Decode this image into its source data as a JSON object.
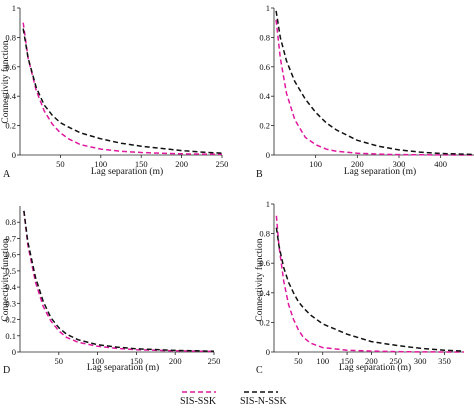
{
  "chart_data": [
    {
      "type": "line",
      "panel_label": "A",
      "xlabel": "Lag separation (m)",
      "ylabel": "Connectivity function",
      "xlim": [
        0,
        250
      ],
      "ylim": [
        0,
        1
      ],
      "x_ticks": [
        "50",
        "100",
        "150",
        "200",
        "250"
      ],
      "y_ticks": [
        "0",
        "0.2",
        "0.4",
        "0.6",
        "0.8",
        "1"
      ],
      "show_ylabel": true,
      "series": [
        {
          "name": "SIS-SSK",
          "color": "#e0189f",
          "x": [
            4,
            10,
            20,
            30,
            40,
            50,
            60,
            75,
            100,
            125,
            150,
            175,
            200,
            225,
            250
          ],
          "y": [
            0.9,
            0.66,
            0.44,
            0.3,
            0.21,
            0.15,
            0.11,
            0.07,
            0.04,
            0.025,
            0.017,
            0.012,
            0.008,
            0.006,
            0.005
          ]
        },
        {
          "name": "SIS-N-SSK",
          "color": "#111111",
          "x": [
            4,
            10,
            20,
            30,
            40,
            50,
            60,
            75,
            100,
            125,
            150,
            175,
            200,
            225,
            250
          ],
          "y": [
            0.86,
            0.66,
            0.46,
            0.34,
            0.27,
            0.22,
            0.19,
            0.15,
            0.11,
            0.08,
            0.06,
            0.045,
            0.03,
            0.02,
            0.012
          ]
        }
      ]
    },
    {
      "type": "line",
      "panel_label": "B",
      "xlabel": "Lag separation (m)",
      "ylabel": "Connectivity function",
      "xlim": [
        0,
        480
      ],
      "ylim": [
        0,
        1
      ],
      "x_ticks": [
        "100",
        "200",
        "300",
        "400"
      ],
      "y_ticks": [
        "0",
        "0.2",
        "0.4",
        "0.6",
        "0.8",
        "1"
      ],
      "show_ylabel": false,
      "series": [
        {
          "name": "SIS-SSK",
          "color": "#e0189f",
          "x": [
            5,
            15,
            30,
            50,
            75,
            100,
            125,
            150,
            200,
            250,
            300,
            400,
            480
          ],
          "y": [
            0.92,
            0.66,
            0.42,
            0.24,
            0.12,
            0.07,
            0.04,
            0.025,
            0.012,
            0.006,
            0.003,
            0.001,
            0.0
          ]
        },
        {
          "name": "SIS-N-SSK",
          "color": "#111111",
          "x": [
            5,
            15,
            30,
            50,
            75,
            100,
            125,
            150,
            200,
            250,
            300,
            350,
            400,
            480
          ],
          "y": [
            0.98,
            0.8,
            0.64,
            0.5,
            0.38,
            0.29,
            0.22,
            0.17,
            0.1,
            0.06,
            0.035,
            0.02,
            0.01,
            0.004
          ]
        }
      ]
    },
    {
      "type": "line",
      "panel_label": "D",
      "xlabel": "Lag separation (m)",
      "ylabel": "Connectivity function",
      "xlim": [
        0,
        250
      ],
      "ylim": [
        0,
        0.9
      ],
      "x_ticks": [
        "50",
        "100",
        "150",
        "200",
        "250"
      ],
      "y_ticks": [
        "0",
        "0.1",
        "0.2",
        "0.3",
        "0.4",
        "0.5",
        "0.6",
        "0.7",
        "0.8"
      ],
      "show_ylabel": true,
      "series": [
        {
          "name": "SIS-SSK",
          "color": "#e0189f",
          "x": [
            5,
            10,
            20,
            30,
            40,
            50,
            60,
            75,
            100,
            125,
            150,
            200,
            250
          ],
          "y": [
            0.87,
            0.66,
            0.43,
            0.28,
            0.19,
            0.13,
            0.09,
            0.06,
            0.035,
            0.022,
            0.014,
            0.007,
            0.004
          ]
        },
        {
          "name": "SIS-N-SSK",
          "color": "#111111",
          "x": [
            5,
            10,
            20,
            30,
            40,
            50,
            60,
            75,
            100,
            125,
            150,
            200,
            250
          ],
          "y": [
            0.87,
            0.68,
            0.46,
            0.31,
            0.21,
            0.15,
            0.11,
            0.075,
            0.045,
            0.03,
            0.02,
            0.01,
            0.005
          ]
        }
      ]
    },
    {
      "type": "line",
      "panel_label": "C",
      "xlabel": "Lag separation (m)",
      "ylabel": "Connectivity function",
      "xlim": [
        0,
        390
      ],
      "ylim": [
        0,
        1
      ],
      "x_ticks": [
        "50",
        "100",
        "150",
        "200",
        "250",
        "300",
        "350"
      ],
      "y_ticks": [
        "0",
        "0.2",
        "0.4",
        "0.6",
        "0.8",
        "1"
      ],
      "show_ylabel": true,
      "series": [
        {
          "name": "SIS-SSK",
          "color": "#e0189f",
          "x": [
            5,
            10,
            20,
            30,
            40,
            50,
            60,
            75,
            100,
            150,
            200,
            250,
            300,
            390
          ],
          "y": [
            0.92,
            0.72,
            0.48,
            0.32,
            0.22,
            0.15,
            0.1,
            0.06,
            0.03,
            0.012,
            0.006,
            0.003,
            0.001,
            0.0
          ]
        },
        {
          "name": "SIS-N-SSK",
          "color": "#111111",
          "x": [
            5,
            10,
            20,
            30,
            40,
            50,
            60,
            75,
            100,
            150,
            200,
            250,
            300,
            350,
            390
          ],
          "y": [
            0.84,
            0.72,
            0.57,
            0.47,
            0.4,
            0.34,
            0.3,
            0.25,
            0.19,
            0.12,
            0.07,
            0.045,
            0.025,
            0.012,
            0.006
          ]
        }
      ]
    }
  ],
  "legend": {
    "items": [
      {
        "label": "SIS-SSK",
        "color": "#e0189f"
      },
      {
        "label": "SIS-N-SSK",
        "color": "#111111"
      }
    ]
  }
}
